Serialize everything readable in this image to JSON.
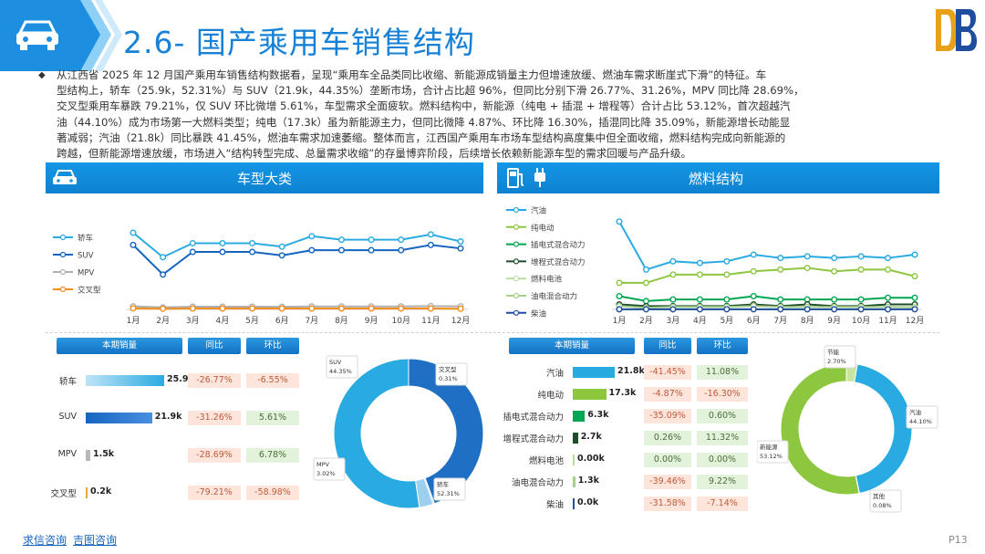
{
  "header": {
    "title": "2.6- 国产乘用车销售结构",
    "car_icon": "car-icon",
    "logo_icon": "db-logo-icon"
  },
  "summary": {
    "lines": [
      "从江西省 2025 年 12 月国产乘用车销售结构数据看，呈现“乘用车全品类同比收缩、新能源成销量主力但增速放缓、燃油车需求断崖式下滑”的特征。车",
      "型结构上，轿车（25.9k，52.31%）与 SUV（21.9k，44.35%）垄断市场，合计占比超 96%，但同比分别下滑 26.77%、31.26%，MPV 同比降 28.69%，",
      "交叉型乘用车暴跌 79.21%，仅 SUV 环比微增 5.61%，车型需求全面疲软。燃料结构中，新能源（纯电 + 插混 + 增程等）合计占比 53.12%，首次超越汽",
      "油（44.10%）成为市场第一大燃料类型；纯电（17.3k）虽为新能源主力，但同比微降 4.87%、环比降 16.30%，插混同比降 35.09%，新能源增长动能显",
      "著减弱；汽油（21.8k）同比暴跌 41.45%，燃油车需求加速萎缩。整体而言，江西国产乘用车市场车型结构高度集中但全面收缩，燃料结构完成向新能源的",
      "跨越，但新能源增速放缓，市场进入“结构转型完成、总量需求收缩”的存量博弈阶段，后续增长依赖新能源车型的需求回暖与产品升级。"
    ]
  },
  "left_panel": {
    "title": "车型大类",
    "icon": "car-icon",
    "table": {
      "headers": [
        "本期销量",
        "同比",
        "环比"
      ],
      "rows": [
        {
          "label": "轿车",
          "value": "25.9k",
          "yoy": "-26.77%",
          "mom": "-6.55%"
        },
        {
          "label": "SUV",
          "value": "21.9k",
          "yoy": "-31.26%",
          "mom": "5.61%"
        },
        {
          "label": "MPV",
          "value": "1.5k",
          "yoy": "-28.69%",
          "mom": "6.78%"
        },
        {
          "label": "交叉型",
          "value": "0.2k",
          "yoy": "-79.21%",
          "mom": "-58.98%"
        }
      ]
    },
    "donut_labels": [
      {
        "name": "SUV",
        "pct": "44.35%"
      },
      {
        "name": "交叉型",
        "pct": "0.31%"
      },
      {
        "name": "MPV",
        "pct": "3.02%"
      },
      {
        "name": "轿车",
        "pct": "52.31%"
      }
    ]
  },
  "right_panel": {
    "title": "燃料结构",
    "icon": "fuel-pump-icon",
    "icon2": "ev-plug-icon",
    "table": {
      "headers": [
        "本期销量",
        "同比",
        "环比"
      ],
      "rows": [
        {
          "label": "汽油",
          "value": "21.8k",
          "yoy": "-41.45%",
          "mom": "11.08%"
        },
        {
          "label": "纯电动",
          "value": "17.3k",
          "yoy": "-4.87%",
          "mom": "-16.30%"
        },
        {
          "label": "插电式混合动力",
          "value": "6.3k",
          "yoy": "-35.09%",
          "mom": "0.60%"
        },
        {
          "label": "增程式混合动力",
          "value": "2.7k",
          "yoy": "0.26%",
          "mom": "11.32%"
        },
        {
          "label": "燃料电池",
          "value": "0.00k",
          "yoy": "0.00%",
          "mom": "0.00%"
        },
        {
          "label": "油电混合动力",
          "value": "1.3k",
          "yoy": "-39.46%",
          "mom": "9.22%"
        },
        {
          "label": "柴油",
          "value": "0.0k",
          "yoy": "-31.58%",
          "mom": "-7.14%"
        }
      ]
    },
    "donut_labels": [
      {
        "name": "节能",
        "pct": "2.70%"
      },
      {
        "name": "汽油",
        "pct": "44.10%"
      },
      {
        "name": "新能源",
        "pct": "53.12%"
      },
      {
        "name": "其他",
        "pct": "0.08%"
      }
    ]
  },
  "footer": {
    "link1": "求信咨询",
    "link2": "吉图咨询",
    "page": "P13"
  },
  "chart_data": [
    {
      "type": "line",
      "x": [
        "1月",
        "2月",
        "3月",
        "4月",
        "5月",
        "6月",
        "7月",
        "8月",
        "9月",
        "10月",
        "11月",
        "12月"
      ],
      "ylim": [
        0,
        55
      ],
      "series": [
        {
          "name": "轿车",
          "color": "#29abe2",
          "values": [
            44,
            30,
            38,
            38,
            38,
            36,
            42,
            40,
            40,
            40,
            43,
            39
          ]
        },
        {
          "name": "SUV",
          "color": "#1565c0",
          "values": [
            37,
            20,
            33,
            33,
            33,
            31,
            34,
            34,
            34,
            34,
            37,
            35
          ]
        },
        {
          "name": "MPV",
          "color": "#b0b0b0",
          "values": [
            1.8,
            1.2,
            1.6,
            1.6,
            1.6,
            1.5,
            1.7,
            1.7,
            1.7,
            1.7,
            1.9,
            1.8
          ]
        },
        {
          "name": "交叉型",
          "color": "#f28e1c",
          "values": [
            0.6,
            0.4,
            0.5,
            0.5,
            0.5,
            0.5,
            0.5,
            0.5,
            0.5,
            0.5,
            0.5,
            0.4
          ]
        }
      ]
    },
    {
      "type": "line",
      "x": [
        "1月",
        "2月",
        "3月",
        "4月",
        "5月",
        "6月",
        "7月",
        "8月",
        "9月",
        "10月",
        "11月",
        "12月"
      ],
      "ylim": [
        0,
        60
      ],
      "series": [
        {
          "name": "汽油",
          "color": "#29abe2",
          "values": [
            53,
            24,
            29,
            28,
            29,
            33,
            31,
            32,
            31,
            32,
            31,
            33
          ]
        },
        {
          "name": "纯电动",
          "color": "#8dc63f",
          "values": [
            16,
            16,
            21,
            21,
            21,
            23,
            24,
            25,
            23,
            24,
            24,
            20
          ]
        },
        {
          "name": "插电式混合动力",
          "color": "#00a651",
          "values": [
            8,
            5,
            6,
            6,
            6,
            8,
            6,
            6,
            6,
            6,
            7,
            7
          ]
        },
        {
          "name": "增程式混合动力",
          "color": "#1e4d2b",
          "values": [
            3,
            2,
            2,
            2,
            2,
            3,
            2,
            3,
            2,
            2,
            3,
            3
          ]
        },
        {
          "name": "燃料电池",
          "color": "#b8dca0",
          "values": [
            0,
            0,
            0,
            0,
            0,
            0,
            0,
            0,
            0,
            0,
            0,
            0
          ]
        },
        {
          "name": "油电混合动力",
          "color": "#a8d08d",
          "values": [
            2,
            1,
            1.5,
            1.5,
            1.5,
            2,
            1.5,
            1.5,
            1.5,
            1.5,
            1.5,
            1.3
          ]
        },
        {
          "name": "柴油",
          "color": "#1f4e9e",
          "values": [
            0.1,
            0.1,
            0.1,
            0.1,
            0.1,
            0.1,
            0.1,
            0.1,
            0.1,
            0.1,
            0.1,
            0.1
          ]
        }
      ]
    },
    {
      "type": "bar",
      "categories": [
        "轿车",
        "SUV",
        "MPV",
        "交叉型"
      ],
      "values": [
        25.9,
        21.9,
        1.5,
        0.2
      ]
    },
    {
      "type": "bar",
      "categories": [
        "汽油",
        "纯电动",
        "插电式混合动力",
        "增程式混合动力",
        "燃料电池",
        "油电混合动力",
        "柴油"
      ],
      "values": [
        21.8,
        17.3,
        6.3,
        2.7,
        0.0,
        1.3,
        0.0
      ]
    },
    {
      "type": "pie",
      "categories": [
        "SUV",
        "交叉型",
        "MPV",
        "轿车"
      ],
      "values": [
        44.35,
        0.31,
        3.02,
        52.31
      ]
    },
    {
      "type": "pie",
      "categories": [
        "节能",
        "汽油",
        "其他",
        "新能源"
      ],
      "values": [
        2.7,
        44.1,
        0.08,
        53.12
      ]
    }
  ]
}
